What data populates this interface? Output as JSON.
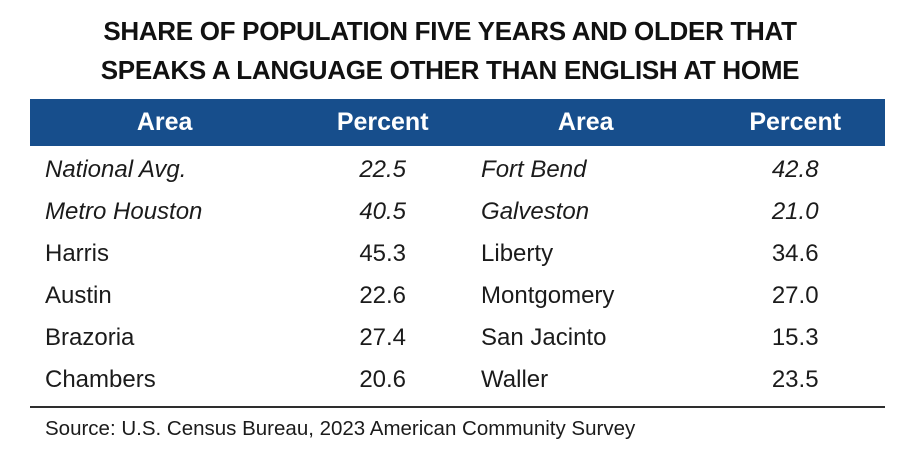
{
  "title": {
    "line1": "SHARE OF POPULATION FIVE YEARS AND OLDER THAT",
    "line2": "SPEAKS A LANGUAGE OTHER THAN ENGLISH AT HOME"
  },
  "table": {
    "headers": [
      "Area",
      "Percent",
      "Area",
      "Percent"
    ],
    "rows": [
      {
        "area1": "National Avg.",
        "pct1": "22.5",
        "area2": "Fort Bend",
        "pct2": "42.8",
        "emphasis": true
      },
      {
        "area1": "Metro Houston",
        "pct1": "40.5",
        "area2": "Galveston",
        "pct2": "21.0",
        "emphasis": true
      },
      {
        "area1": "Harris",
        "pct1": "45.3",
        "area2": "Liberty",
        "pct2": "34.6",
        "emphasis": false
      },
      {
        "area1": "Austin",
        "pct1": "22.6",
        "area2": "Montgomery",
        "pct2": "27.0",
        "emphasis": false
      },
      {
        "area1": "Brazoria",
        "pct1": "27.4",
        "area2": "San Jacinto",
        "pct2": "15.3",
        "emphasis": false
      },
      {
        "area1": "Chambers",
        "pct1": "20.6",
        "area2": "Waller",
        "pct2": "23.5",
        "emphasis": false
      }
    ]
  },
  "source": "Source: U.S. Census Bureau, 2023 American Community Survey",
  "colors": {
    "header_bg": "#174E8C",
    "header_text": "#FFFFFF",
    "body_text": "#1B1B1B",
    "rule": "#2E2E2E"
  },
  "chart_data": {
    "type": "table",
    "title": "SHARE OF POPULATION FIVE YEARS AND OLDER THAT SPEAKS A LANGUAGE OTHER THAN ENGLISH AT HOME",
    "columns": [
      "Area",
      "Percent"
    ],
    "values": [
      [
        "National Avg.",
        22.5
      ],
      [
        "Metro Houston",
        40.5
      ],
      [
        "Harris",
        45.3
      ],
      [
        "Austin",
        22.6
      ],
      [
        "Brazoria",
        27.4
      ],
      [
        "Chambers",
        20.6
      ],
      [
        "Fort Bend",
        42.8
      ],
      [
        "Galveston",
        21.0
      ],
      [
        "Liberty",
        34.6
      ],
      [
        "Montgomery",
        27.0
      ],
      [
        "San Jacinto",
        15.3
      ],
      [
        "Waller",
        23.5
      ]
    ],
    "notes": "First two rows (National Avg., Metro Houston) are italicized summary rows; remaining rows are counties.",
    "source": "Source: U.S. Census Bureau, 2023 American Community Survey"
  }
}
